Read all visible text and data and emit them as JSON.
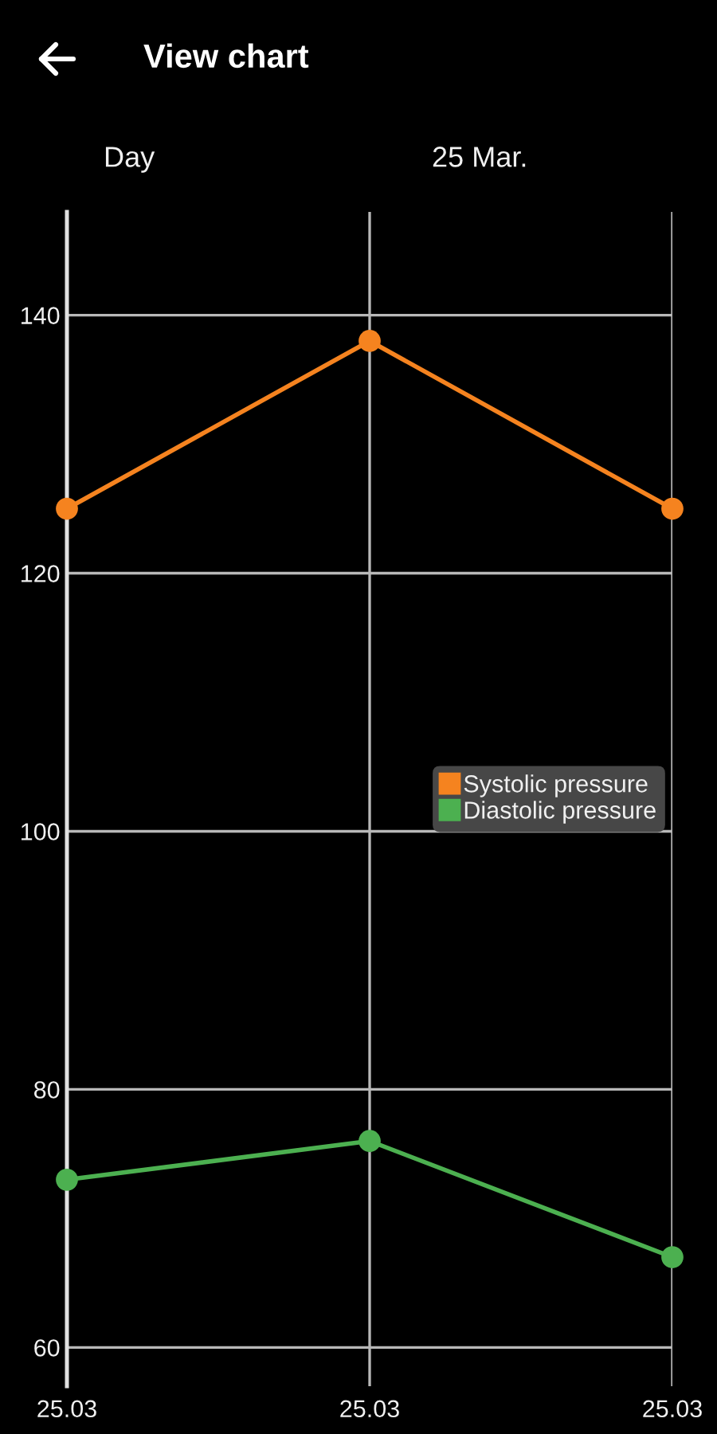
{
  "chart_data": {
    "type": "line",
    "title": "View chart",
    "annotations": [
      "Day",
      "25 Mar."
    ],
    "categories": [
      "25.03",
      "25.03",
      "25.03"
    ],
    "series": [
      {
        "name": "Systolic pressure",
        "color": "#f5831f",
        "values": [
          125,
          138,
          125
        ]
      },
      {
        "name": "Diastolic pressure",
        "color": "#4cb050",
        "values": [
          73,
          76,
          67
        ]
      }
    ],
    "ylim": [
      57,
      148
    ],
    "yticks": [
      60,
      80,
      100,
      120,
      140
    ],
    "grid": true,
    "legend": "center right",
    "marker": "circle",
    "line_style": "solid"
  }
}
